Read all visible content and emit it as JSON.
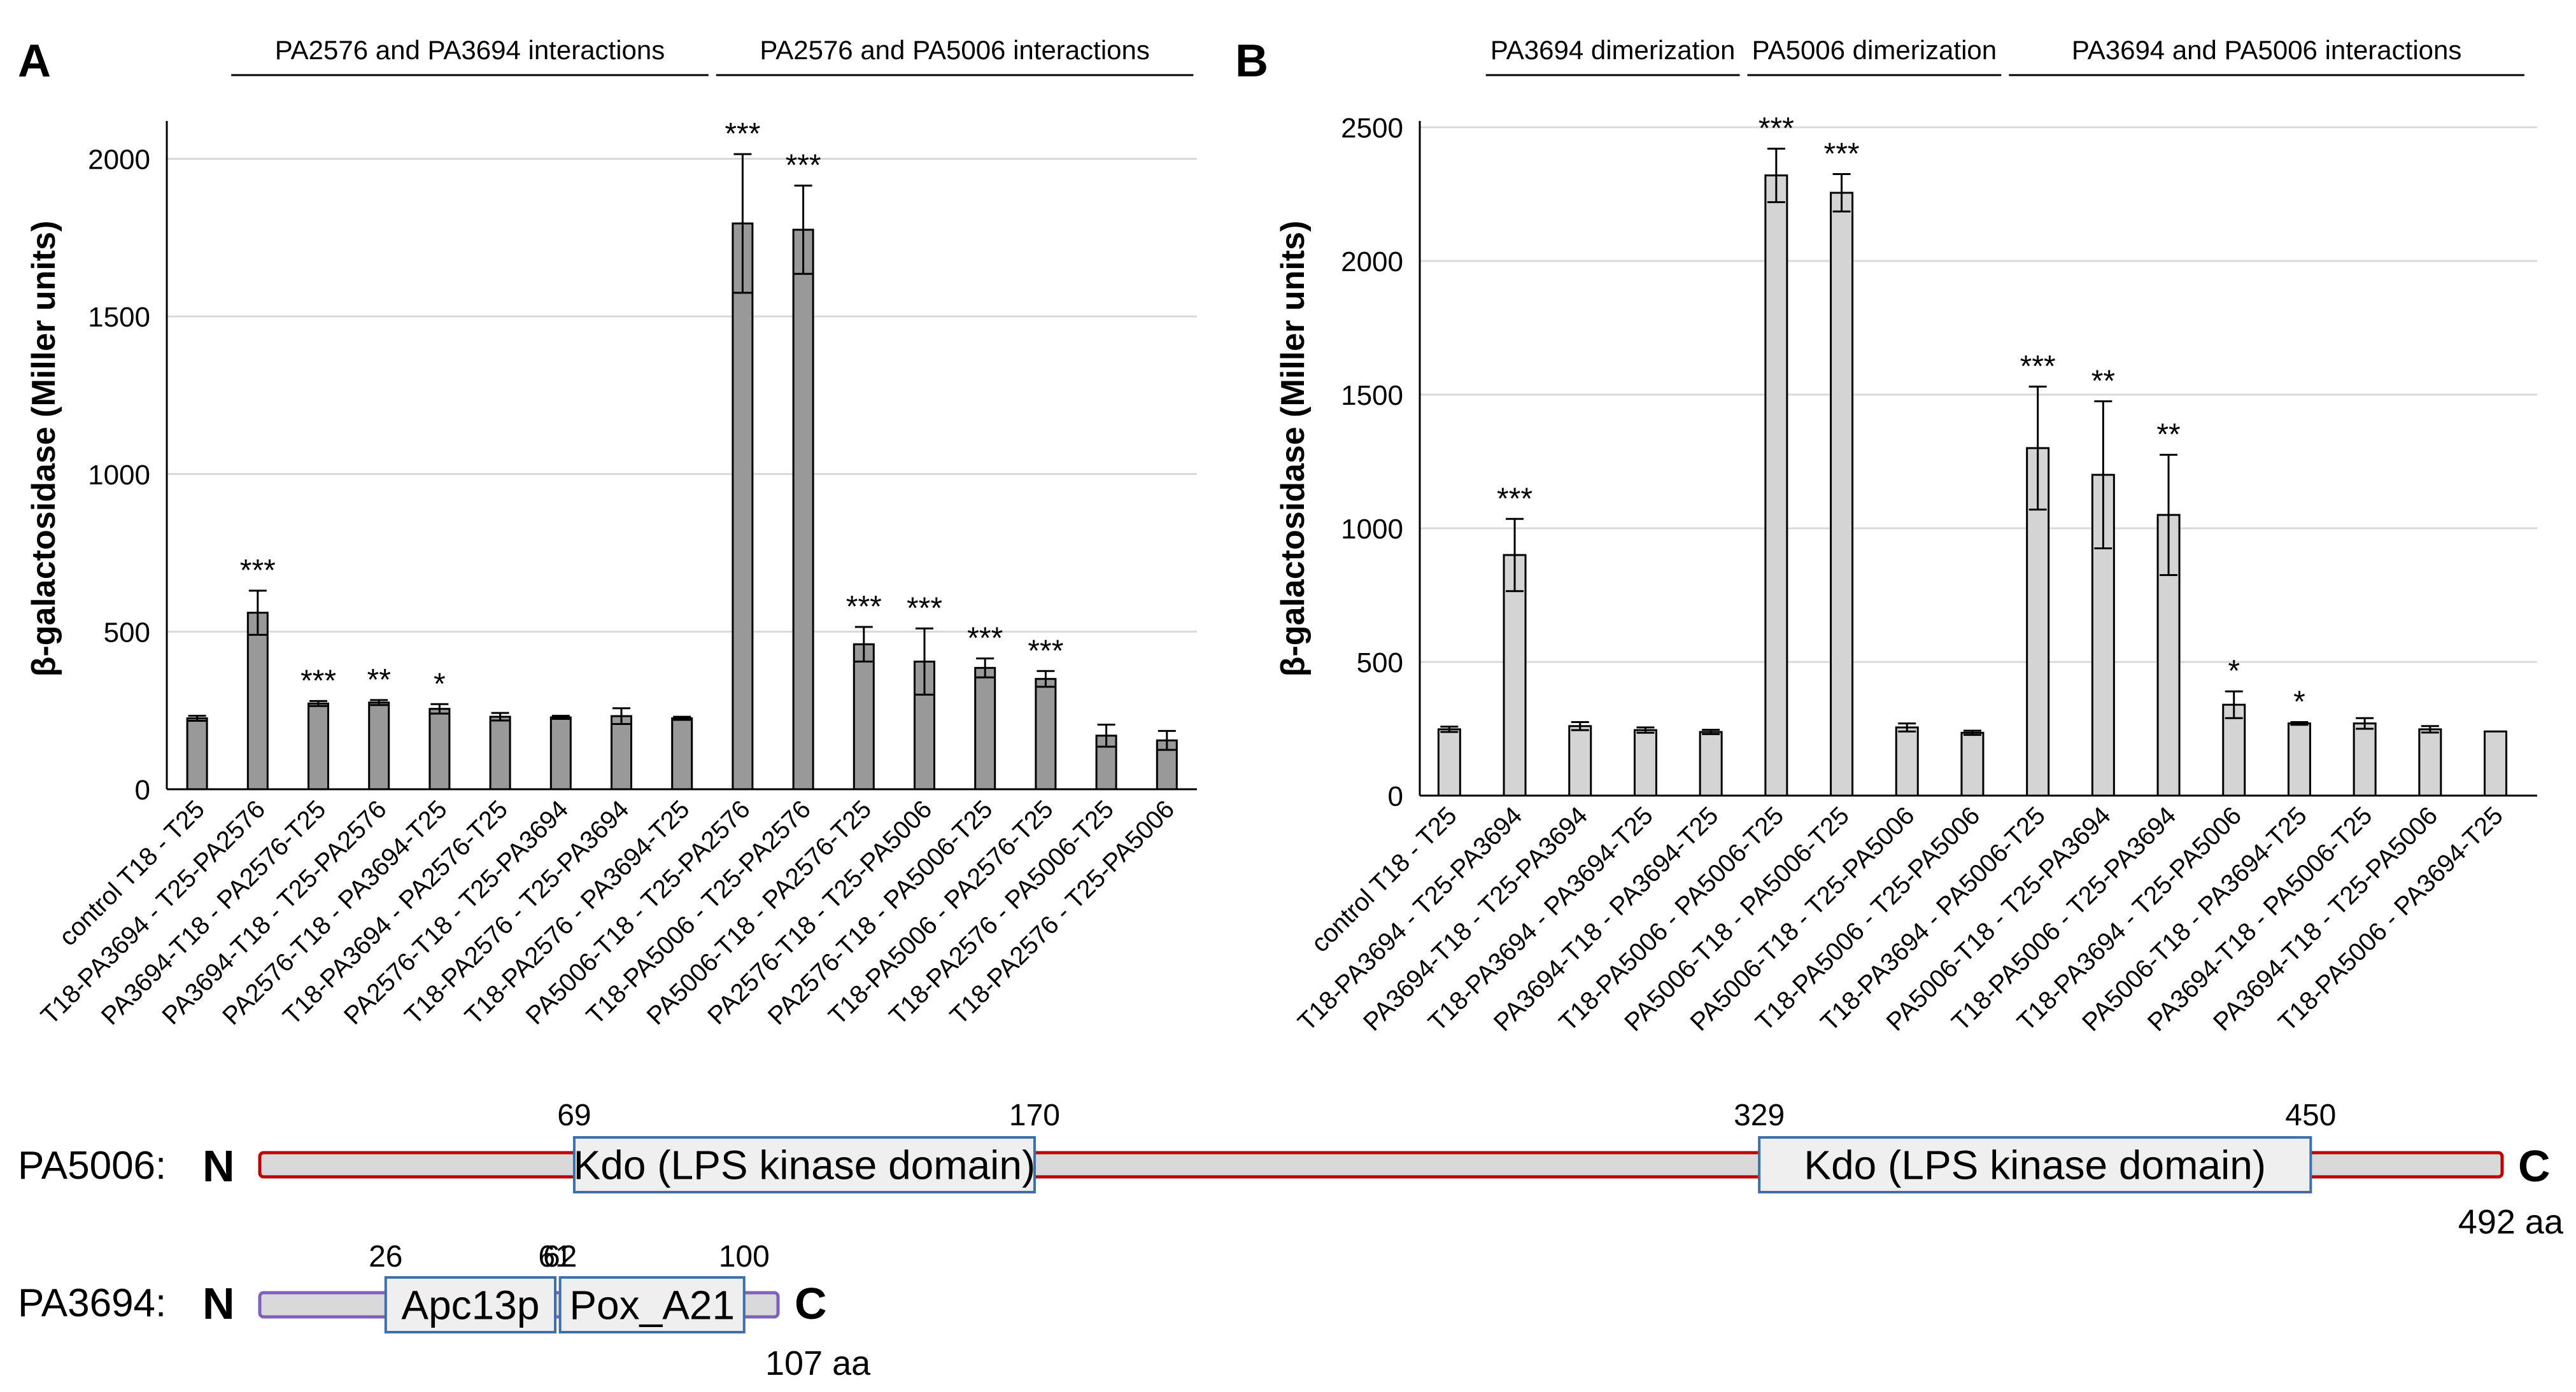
{
  "chart_data": [
    {
      "type": "bar",
      "panel_label": "A",
      "ylabel": "β-galactosidase (Miller units)",
      "ylim": [
        0,
        2100
      ],
      "yticks": [
        "0",
        "500",
        "1000",
        "1500",
        "2000"
      ],
      "ytick_values": [
        0,
        500,
        1000,
        1500,
        2000
      ],
      "grid": true,
      "bar_color": "#999999",
      "group_headers": [
        {
          "label": "PA2576 and PA3694 interactions",
          "start": 1,
          "end": 8
        },
        {
          "label": "PA2576 and PA5006 interactions",
          "start": 9,
          "end": 16
        }
      ],
      "categories": [
        "control T18 - T25",
        "T18-PA3694 - T25-PA2576",
        "PA3694-T18 - PA2576-T25",
        "PA3694-T18 - T25-PA2576",
        "PA2576-T18 - PA3694-T25",
        "T18-PA3694 - PA2576-T25",
        "PA2576-T18 - T25-PA3694",
        "T18-PA2576 - T25-PA3694",
        "T18-PA2576 - PA3694-T25",
        "PA5006-T18 - T25-PA2576",
        "T18-PA5006 - T25-PA2576",
        "PA5006-T18 - PA2576-T25",
        "PA2576-T18 - T25-PA5006",
        "PA2576-T18 - PA5006-T25",
        "T18-PA5006 - PA2576-T25",
        "T18-PA2576 - PA5006-T25",
        "T18-PA2576 - T25-PA5006"
      ],
      "values": [
        225,
        560,
        272,
        275,
        255,
        230,
        228,
        232,
        225,
        1795,
        1775,
        460,
        405,
        385,
        350,
        170,
        155
      ],
      "errors": [
        8,
        70,
        8,
        8,
        15,
        12,
        5,
        25,
        5,
        220,
        140,
        55,
        105,
        30,
        25,
        35,
        30
      ],
      "significance": [
        "",
        "***",
        "***",
        "**",
        "*",
        "",
        "",
        "",
        "",
        "***",
        "***",
        "***",
        "***",
        "***",
        "***",
        "",
        ""
      ]
    },
    {
      "type": "bar",
      "panel_label": "B",
      "ylabel": "β-galactosidase (Miller units)",
      "ylim": [
        0,
        2500
      ],
      "yticks": [
        "0",
        "500",
        "1000",
        "1500",
        "2000",
        "2500"
      ],
      "ytick_values": [
        0,
        500,
        1000,
        1500,
        2000,
        2500
      ],
      "grid": true,
      "bar_color": "#d4d4d4",
      "group_headers": [
        {
          "label": "PA3694 dimerization",
          "start": 1,
          "end": 4
        },
        {
          "label": "PA5006 dimerization",
          "start": 5,
          "end": 8
        },
        {
          "label": "PA3694 and PA5006 interactions",
          "start": 9,
          "end": 16
        }
      ],
      "categories": [
        "control T18 - T25",
        "T18-PA3694 - T25-PA3694",
        "PA3694-T18 - T25-PA3694",
        "T18-PA3694 - PA3694-T25",
        "PA3694-T18 - PA3694-T25",
        "T18-PA5006 - PA5006-T25",
        "PA5006-T18 - PA5006-T25",
        "PA5006-T18 - T25-PA5006",
        "T18-PA5006 - T25-PA5006",
        "T18-PA3694 - PA5006-T25",
        "PA5006-T18 - T25-PA3694",
        "T18-PA5006 - T25-PA3694",
        "T18-PA3694 - T25-PA5006",
        "PA5006-T18 - PA3694-T25",
        "PA3694-T18 - PA5006-T25",
        "PA3694-T18 - T25-PA5006",
        "T18-PA5006 - PA3694-T25"
      ],
      "values": [
        248,
        900,
        260,
        245,
        238,
        2320,
        2255,
        255,
        235,
        1300,
        1200,
        1050,
        340,
        270,
        270,
        248,
        240
      ],
      "errors": [
        10,
        135,
        15,
        10,
        8,
        100,
        70,
        15,
        8,
        230,
        275,
        225,
        50,
        5,
        20,
        12,
        0
      ],
      "significance": [
        "",
        "***",
        "",
        "",
        "",
        "***",
        "***",
        "",
        "",
        "***",
        "**",
        "**",
        "*",
        "*",
        "",
        "",
        ""
      ]
    }
  ],
  "domains": {
    "pa5006": {
      "label": "PA5006:",
      "n_label": "N",
      "c_label": "C",
      "length": "492 aa",
      "length_value": 492,
      "border_color": "#c00000",
      "domains": [
        {
          "name": "Kdo (LPS kinase domain)",
          "start": 69,
          "end": 170,
          "start_label": "69",
          "end_label": "170"
        },
        {
          "name": "Kdo (LPS kinase domain)",
          "start": 329,
          "end": 450,
          "start_label": "329",
          "end_label": "450"
        }
      ]
    },
    "pa3694": {
      "label": "PA3694:",
      "n_label": "N",
      "c_label": "C",
      "length": "107 aa",
      "length_value": 107,
      "border_color": "#7f5fbf",
      "domains": [
        {
          "name": "Apc13p",
          "start": 26,
          "end": 61,
          "start_label": "26",
          "end_label": "61"
        },
        {
          "name": "Pox_A21",
          "start": 62,
          "end": 100,
          "start_label": "62",
          "end_label": "100"
        }
      ]
    }
  }
}
